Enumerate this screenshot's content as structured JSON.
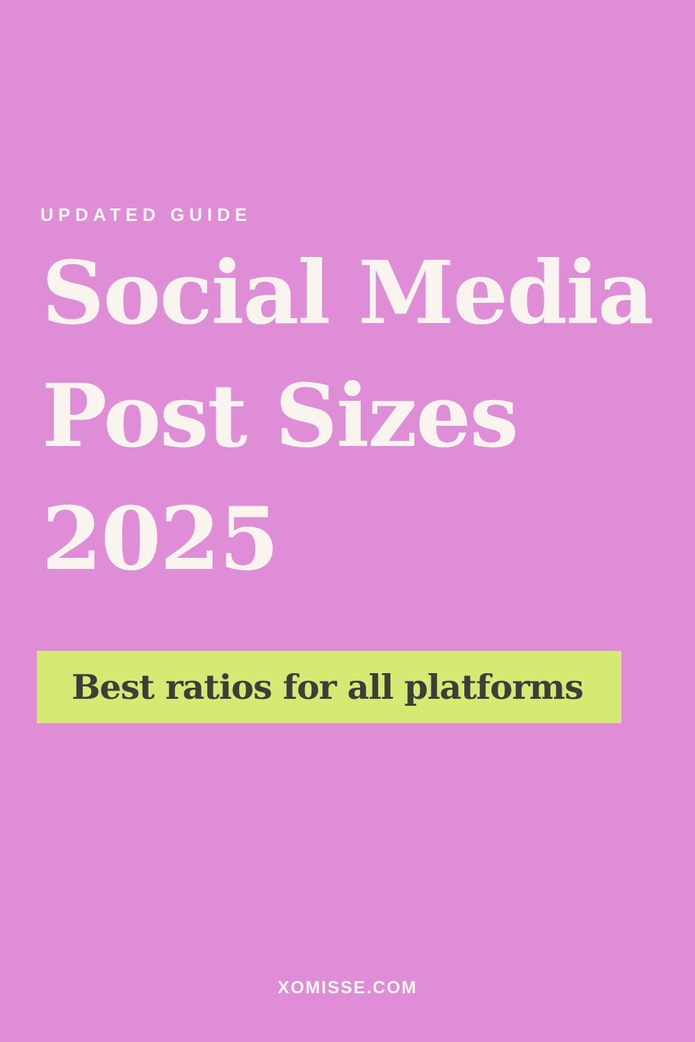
{
  "graphic": {
    "eyebrow": "UPDATED GUIDE",
    "title_lines": [
      "Social Media",
      "Post Sizes",
      "2025"
    ],
    "banner": {
      "label": "Best ratios for all platforms"
    },
    "footer_url": "XOMISSE.COM",
    "colors": {
      "background": "#e08dd8",
      "eyebrow_text": "#faf6f1",
      "title_text": "#f9f4ee",
      "banner_background": "#d6e973",
      "banner_text": "#3a3f3a",
      "footer_text": "#fbf7f2"
    }
  }
}
